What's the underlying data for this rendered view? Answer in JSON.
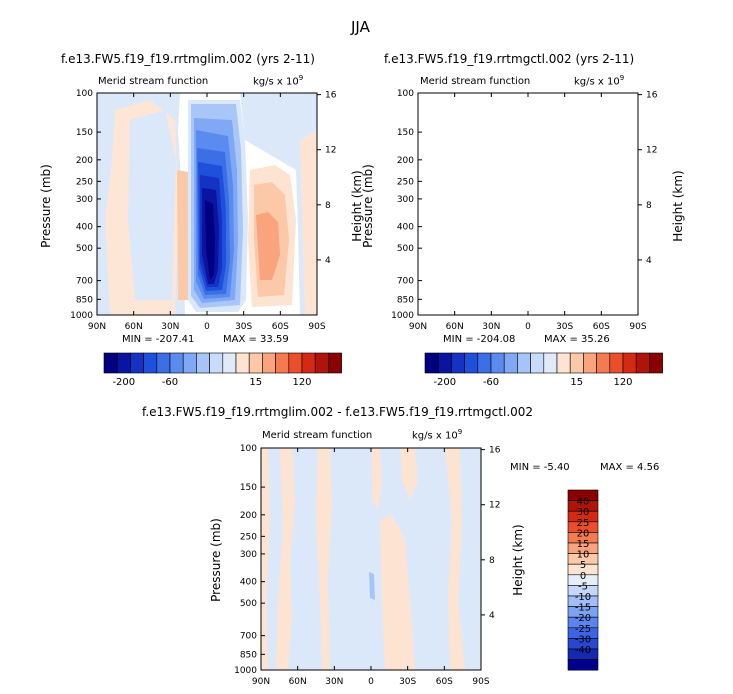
{
  "figure_title": "JJA",
  "colors": {
    "neg": [
      "#000080",
      "#0a14a0",
      "#1432c4",
      "#1e50dc",
      "#3c6ee6",
      "#5a8cf0",
      "#80a8f4",
      "#a6c4f8",
      "#c8dcfa",
      "#e0eaf8"
    ],
    "pos": [
      "#fde4d2",
      "#fbc8a8",
      "#f9a47c",
      "#f47a50",
      "#ea4e2c",
      "#d42a14",
      "#b01408",
      "#8a0000"
    ],
    "diff": [
      "#00008c",
      "#1428b4",
      "#2848d2",
      "#3c64e6",
      "#5a84f0",
      "#7ca2f4",
      "#a2bef8",
      "#c6d8fa",
      "#e6eefa",
      "#fde4d2",
      "#fbc8a8",
      "#f9a47c",
      "#f47a50",
      "#ea4e2c",
      "#d42a14",
      "#b01408",
      "#8a0000"
    ]
  },
  "chart_data": [
    {
      "type": "heatmap",
      "title": "f.e13.FW5.f19_f19.rrtmglim.002 (yrs 2-11)",
      "subtitle_left": "Merid stream function",
      "subtitle_right": "kg/s x 10",
      "subtitle_exp": "9",
      "xlabel": "",
      "ylabel": "Pressure (mb)",
      "y2label": "Height (km)",
      "x_ticks": [
        "90N",
        "60N",
        "30N",
        "0",
        "30S",
        "60S",
        "90S"
      ],
      "y_ticks": [
        "100",
        "150",
        "200",
        "250",
        "300",
        "400",
        "500",
        "700",
        "850",
        "1000"
      ],
      "y2_ticks": [
        "16",
        "12",
        "8",
        "4"
      ],
      "min_label": "MIN = -207.41",
      "max_label": "MAX = 33.59",
      "min": -207.41,
      "max": 33.59,
      "colorbar_labels": [
        "-200",
        "-60",
        "15",
        "120"
      ]
    },
    {
      "type": "heatmap",
      "title": "f.e13.FW5.f19_f19.rrtmgctl.002 (yrs 2-11)",
      "subtitle_left": "Merid stream function",
      "subtitle_right": "kg/s x 10",
      "subtitle_exp": "9",
      "xlabel": "",
      "ylabel": "Pressure (mb)",
      "y2label": "Height (km)",
      "x_ticks": [
        "90N",
        "60N",
        "30N",
        "0",
        "30S",
        "60S",
        "90S"
      ],
      "y_ticks": [
        "100",
        "150",
        "200",
        "250",
        "300",
        "400",
        "500",
        "700",
        "850",
        "1000"
      ],
      "y2_ticks": [
        "16",
        "12",
        "8",
        "4"
      ],
      "min_label": "MIN = -204.08",
      "max_label": "MAX = 35.26",
      "min": -204.08,
      "max": 35.26,
      "colorbar_labels": [
        "-200",
        "-60",
        "15",
        "120"
      ]
    },
    {
      "type": "heatmap",
      "title": "f.e13.FW5.f19_f19.rrtmglim.002 - f.e13.FW5.f19_f19.rrtmgctl.002",
      "subtitle_left": "Merid stream function",
      "subtitle_right": "kg/s x 10",
      "subtitle_exp": "9",
      "xlabel": "",
      "ylabel": "Pressure (mb)",
      "y2label": "Height (km)",
      "x_ticks": [
        "90N",
        "60N",
        "30N",
        "0",
        "30S",
        "60S",
        "90S"
      ],
      "y_ticks": [
        "100",
        "150",
        "200",
        "250",
        "300",
        "400",
        "500",
        "700",
        "850",
        "1000"
      ],
      "y2_ticks": [
        "16",
        "12",
        "8",
        "4"
      ],
      "min_label": "MIN = -5.40",
      "max_label": "MAX = 4.56",
      "min": -5.4,
      "max": 4.56,
      "colorbar_labels": [
        "40",
        "30",
        "25",
        "20",
        "15",
        "10",
        "5",
        "0",
        "-5",
        "-10",
        "-15",
        "-20",
        "-25",
        "-30",
        "-40"
      ]
    }
  ]
}
